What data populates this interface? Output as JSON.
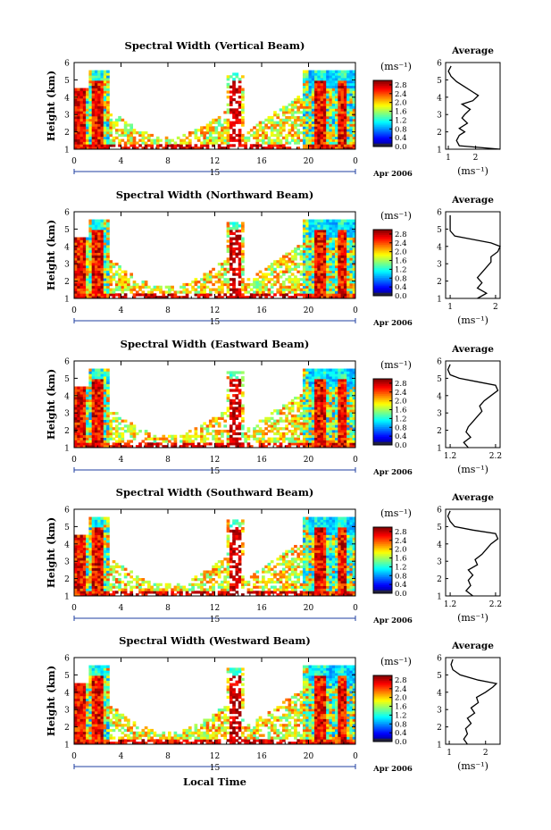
{
  "figure": {
    "xlabel": "Local Time"
  },
  "chart_data": [
    {
      "type": "heatmap",
      "title": "Spectral Width (Vertical Beam)",
      "ylabel": "Height (km)",
      "xticks": [
        "0",
        "4",
        "8",
        "12",
        "16",
        "20",
        "0"
      ],
      "xrange": [
        0,
        24
      ],
      "yticks": [
        "1",
        "2",
        "3",
        "4",
        "5",
        "6"
      ],
      "ylim": [
        1,
        6
      ],
      "date_marker": "15",
      "date_label": "Apr 2006",
      "colorbar": {
        "unit": "(ms⁻¹)",
        "ticks": [
          "0.0",
          "0.4",
          "0.8",
          "1.2",
          "1.6",
          "2.0",
          "2.4",
          "2.8"
        ],
        "range": [
          0,
          3.0
        ]
      },
      "average": {
        "title": "Average",
        "xlabel": "(ms⁻¹)",
        "xticks": [
          "1",
          "2"
        ],
        "xlim": [
          0.9,
          2.9
        ],
        "profile": [
          [
            1.0,
            2.9
          ],
          [
            1.2,
            1.4
          ],
          [
            1.5,
            1.3
          ],
          [
            1.8,
            1.4
          ],
          [
            2.0,
            1.6
          ],
          [
            2.2,
            1.4
          ],
          [
            2.5,
            1.7
          ],
          [
            2.8,
            1.5
          ],
          [
            3.0,
            1.6
          ],
          [
            3.3,
            1.8
          ],
          [
            3.6,
            1.5
          ],
          [
            3.8,
            1.9
          ],
          [
            4.1,
            2.1
          ],
          [
            4.3,
            1.9
          ],
          [
            4.6,
            1.6
          ],
          [
            4.9,
            1.3
          ],
          [
            5.2,
            1.1
          ],
          [
            5.5,
            1.0
          ],
          [
            5.8,
            1.1
          ]
        ]
      }
    },
    {
      "type": "heatmap",
      "title": "Spectral Width (Northward Beam)",
      "ylabel": "Height (km)",
      "xticks": [
        "0",
        "4",
        "8",
        "12",
        "16",
        "20",
        "0"
      ],
      "xrange": [
        0,
        24
      ],
      "yticks": [
        "1",
        "2",
        "3",
        "4",
        "5",
        "6"
      ],
      "ylim": [
        1,
        6
      ],
      "date_marker": "15",
      "date_label": "Apr 2006",
      "colorbar": {
        "unit": "(ms⁻¹)",
        "ticks": [
          "0.0",
          "0.4",
          "0.8",
          "1.2",
          "1.6",
          "2.0",
          "2.4",
          "2.8"
        ],
        "range": [
          0,
          3.0
        ]
      },
      "average": {
        "title": "Average",
        "xlabel": "(ms⁻¹)",
        "xticks": [
          "1",
          "2"
        ],
        "xlim": [
          0.9,
          2.1
        ],
        "profile": [
          [
            1.0,
            1.6
          ],
          [
            1.3,
            1.8
          ],
          [
            1.6,
            1.6
          ],
          [
            1.9,
            1.7
          ],
          [
            2.2,
            1.6
          ],
          [
            2.5,
            1.7
          ],
          [
            2.8,
            1.8
          ],
          [
            3.1,
            1.9
          ],
          [
            3.4,
            1.9
          ],
          [
            3.7,
            2.05
          ],
          [
            4.0,
            2.1
          ],
          [
            4.2,
            1.9
          ],
          [
            4.4,
            1.5
          ],
          [
            4.6,
            1.1
          ],
          [
            4.9,
            1.0
          ],
          [
            5.3,
            1.0
          ],
          [
            5.8,
            1.0
          ]
        ]
      }
    },
    {
      "type": "heatmap",
      "title": "Spectral Width (Eastward Beam)",
      "ylabel": "Height (km)",
      "xticks": [
        "0",
        "4",
        "8",
        "12",
        "16",
        "20",
        "0"
      ],
      "xrange": [
        0,
        24
      ],
      "yticks": [
        "1",
        "2",
        "3",
        "4",
        "5",
        "6"
      ],
      "ylim": [
        1,
        6
      ],
      "date_marker": "15",
      "date_label": "Apr 2006",
      "colorbar": {
        "unit": "(ms⁻¹)",
        "ticks": [
          "0.0",
          "0.4",
          "0.8",
          "1.2",
          "1.6",
          "2.0",
          "2.4",
          "2.8"
        ],
        "range": [
          0,
          3.0
        ]
      },
      "average": {
        "title": "Average",
        "xlabel": "(ms⁻¹)",
        "xticks": [
          "1.2",
          "2.2"
        ],
        "xlim": [
          1.1,
          2.3
        ],
        "profile": [
          [
            1.0,
            1.6
          ],
          [
            1.3,
            1.5
          ],
          [
            1.6,
            1.65
          ],
          [
            1.9,
            1.55
          ],
          [
            2.2,
            1.6
          ],
          [
            2.5,
            1.7
          ],
          [
            2.8,
            1.8
          ],
          [
            3.1,
            1.9
          ],
          [
            3.4,
            1.85
          ],
          [
            3.7,
            1.95
          ],
          [
            4.0,
            2.1
          ],
          [
            4.3,
            2.25
          ],
          [
            4.6,
            2.2
          ],
          [
            4.8,
            1.8
          ],
          [
            5.0,
            1.4
          ],
          [
            5.2,
            1.2
          ],
          [
            5.5,
            1.15
          ],
          [
            5.8,
            1.2
          ]
        ]
      }
    },
    {
      "type": "heatmap",
      "title": "Spectral Width (Southward Beam)",
      "ylabel": "Height (km)",
      "xticks": [
        "0",
        "4",
        "8",
        "12",
        "16",
        "20",
        "0"
      ],
      "xrange": [
        0,
        24
      ],
      "yticks": [
        "1",
        "2",
        "3",
        "4",
        "5",
        "6"
      ],
      "ylim": [
        1,
        6
      ],
      "date_marker": "15",
      "date_label": "Apr 2006",
      "colorbar": {
        "unit": "(ms⁻¹)",
        "ticks": [
          "0.0",
          "0.4",
          "0.8",
          "1.2",
          "1.6",
          "2.0",
          "2.4",
          "2.8"
        ],
        "range": [
          0,
          3.0
        ]
      },
      "average": {
        "title": "Average",
        "xlabel": "(ms⁻¹)",
        "xticks": [
          "1.2",
          "2.2"
        ],
        "xlim": [
          1.1,
          2.3
        ],
        "profile": [
          [
            1.0,
            1.7
          ],
          [
            1.3,
            1.55
          ],
          [
            1.6,
            1.65
          ],
          [
            1.9,
            1.6
          ],
          [
            2.2,
            1.7
          ],
          [
            2.5,
            1.6
          ],
          [
            2.8,
            1.8
          ],
          [
            3.1,
            1.75
          ],
          [
            3.4,
            1.9
          ],
          [
            3.7,
            2.0
          ],
          [
            4.0,
            2.1
          ],
          [
            4.3,
            2.25
          ],
          [
            4.6,
            2.2
          ],
          [
            4.8,
            1.7
          ],
          [
            5.0,
            1.3
          ],
          [
            5.3,
            1.2
          ],
          [
            5.6,
            1.15
          ],
          [
            5.9,
            1.2
          ]
        ]
      }
    },
    {
      "type": "heatmap",
      "title": "Spectral Width (Westward Beam)",
      "ylabel": "Height (km)",
      "xticks": [
        "0",
        "4",
        "8",
        "12",
        "16",
        "20",
        "0"
      ],
      "xrange": [
        0,
        24
      ],
      "yticks": [
        "1",
        "2",
        "3",
        "4",
        "5",
        "6"
      ],
      "ylim": [
        1,
        6
      ],
      "date_marker": "15",
      "date_label": "Apr 2006",
      "colorbar": {
        "unit": "(ms⁻¹)",
        "ticks": [
          "0.0",
          "0.4",
          "0.8",
          "1.2",
          "1.6",
          "2.0",
          "2.4",
          "2.8"
        ],
        "range": [
          0,
          3.0
        ]
      },
      "average": {
        "title": "Average",
        "xlabel": "(ms⁻¹)",
        "xticks": [
          "1",
          "2"
        ],
        "xlim": [
          0.9,
          2.4
        ],
        "profile": [
          [
            1.0,
            1.5
          ],
          [
            1.3,
            1.4
          ],
          [
            1.6,
            1.5
          ],
          [
            1.9,
            1.45
          ],
          [
            2.2,
            1.6
          ],
          [
            2.5,
            1.5
          ],
          [
            2.8,
            1.7
          ],
          [
            3.1,
            1.6
          ],
          [
            3.4,
            1.8
          ],
          [
            3.7,
            1.75
          ],
          [
            4.0,
            2.0
          ],
          [
            4.3,
            2.2
          ],
          [
            4.5,
            2.3
          ],
          [
            4.7,
            1.8
          ],
          [
            5.0,
            1.3
          ],
          [
            5.3,
            1.1
          ],
          [
            5.6,
            1.05
          ],
          [
            5.9,
            1.1
          ]
        ]
      }
    }
  ]
}
